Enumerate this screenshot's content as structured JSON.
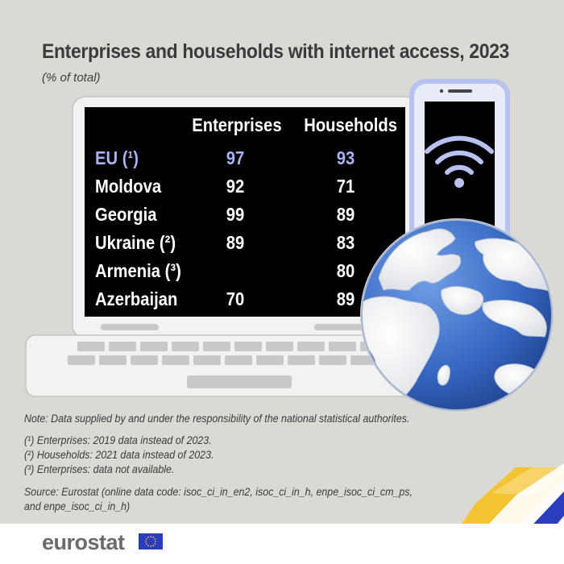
{
  "header": {
    "title": "Enterprises and households with internet access, 2023",
    "subtitle": "(% of total)"
  },
  "chart_data": {
    "type": "table",
    "columns": [
      "Enterprises",
      "Households"
    ],
    "rows": [
      {
        "label": "EU (¹)",
        "enterprises": "97",
        "households": "93",
        "highlight": true
      },
      {
        "label": "Moldova",
        "enterprises": "92",
        "households": "71"
      },
      {
        "label": "Georgia",
        "enterprises": "99",
        "households": "89"
      },
      {
        "label": "Ukraine (²)",
        "enterprises": "89",
        "households": "83"
      },
      {
        "label": "Armenia (³)",
        "enterprises": "",
        "households": "80"
      },
      {
        "label": "Azerbaijan",
        "enterprises": "70",
        "households": "89"
      }
    ]
  },
  "notes": {
    "main": "Note: Data supplied by and under the responsibility of the national statistical authorites.",
    "footnotes": [
      "(¹) Enterprises: 2019 data instead of 2023.",
      "(²) Households: 2021 data instead of 2023.",
      "(³) Enterprises: data not available."
    ],
    "source_line1": "Source: Eurostat (online data code: isoc_ci_in_en2, isoc_ci_in_h, enpe_isoc_ci_cm_ps,",
    "source_line2": "and enpe_isoc_ci_in_h)"
  },
  "footer": {
    "brand": "eurostat",
    "flag_icon": "eu-flag-icon"
  },
  "colors": {
    "background": "#dad9d4",
    "screen": "#000000",
    "highlight": "#a7b3f0",
    "laptop_frame": "#f2f2f2",
    "globe_ocean": "#2f66bf",
    "yellow_accent": "#f5c22b",
    "blue_accent": "#2a3dbd"
  }
}
